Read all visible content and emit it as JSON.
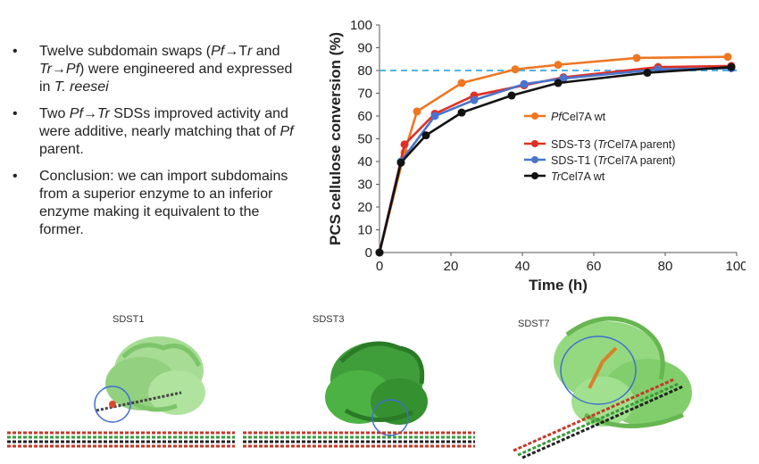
{
  "bullets": [
    {
      "parts": [
        "Twelve subdomain swaps (",
        {
          "i": "Pf"
        },
        "→T",
        {
          "i": "r"
        },
        " and ",
        {
          "i": "Tr"
        },
        "→",
        {
          "i": "Pf"
        },
        ") were engineered and expressed in ",
        {
          "i": "T. reesei"
        }
      ]
    },
    {
      "parts": [
        "Two ",
        {
          "i": "Pf"
        },
        "→",
        {
          "i": "Tr"
        },
        " SDSs improved activity and were additive, nearly matching that of ",
        {
          "i": "Pf"
        },
        " parent."
      ]
    },
    {
      "parts": [
        "Conclusion: we can import subdomains from a superior enzyme to an inferior enzyme making it equivalent to the former."
      ]
    }
  ],
  "structures": {
    "labels": [
      "SDST1",
      "SDST3",
      "SDST7"
    ]
  },
  "chart_data": {
    "type": "line",
    "title": "",
    "xlabel": "Time (h)",
    "ylabel": "PCS cellulose conversion (%)",
    "xlim": [
      0,
      100
    ],
    "ylim": [
      0,
      100
    ],
    "xticks": [
      0,
      20,
      40,
      60,
      80,
      100
    ],
    "yticks": [
      0,
      10,
      20,
      30,
      40,
      50,
      60,
      70,
      80,
      90,
      100
    ],
    "grid": false,
    "reference_line": {
      "y": 80,
      "style": "dashed",
      "color": "#4fb3e8"
    },
    "legend": {
      "placement": "center-right"
    },
    "series": [
      {
        "name": "PfCel7A wt",
        "name_italic": "Pf",
        "name_rest": "Cel7A wt",
        "name_suffix": "",
        "color": "#ee7722",
        "in_legend_group": 1,
        "x": [
          0,
          7,
          10.5,
          23,
          38,
          50,
          72,
          97.5
        ],
        "y": [
          0,
          44,
          62,
          74.5,
          80.5,
          82.5,
          85.5,
          86
        ]
      },
      {
        "name": "SDS-T3 (TrCel7A parent)",
        "name_prefix": "SDS-T3 (",
        "name_italic": "Tr",
        "name_rest": "Cel7A parent)",
        "color": "#e03025",
        "in_legend_group": 2,
        "x": [
          0,
          7,
          15.5,
          26.5,
          40.5,
          51.5,
          78,
          98.5
        ],
        "y": [
          0,
          47.5,
          61,
          69,
          73.5,
          77,
          81.5,
          82
        ]
      },
      {
        "name": "SDS-T1 (TrCel7A parent)",
        "name_prefix": "SDS-T1 (",
        "name_italic": "Tr",
        "name_rest": "Cel7A parent)",
        "color": "#4a74cc",
        "in_legend_group": 2,
        "x": [
          0,
          6,
          15.5,
          26.5,
          40.5,
          51.5,
          78,
          98.5
        ],
        "y": [
          0,
          40,
          60,
          67,
          74,
          76.5,
          80.5,
          81
        ]
      },
      {
        "name": "TrCel7A wt",
        "name_italic": "Tr",
        "name_rest": "Cel7A wt",
        "color": "#121212",
        "in_legend_group": 2,
        "x": [
          0,
          6,
          13,
          23,
          37,
          50,
          75,
          98.5
        ],
        "y": [
          0,
          39.5,
          51.5,
          61.5,
          69,
          74.5,
          79,
          81.5
        ]
      }
    ],
    "plot_series_colors_drawn": [
      "#ee7722",
      "#e03025",
      "#4a74cc"
    ]
  }
}
